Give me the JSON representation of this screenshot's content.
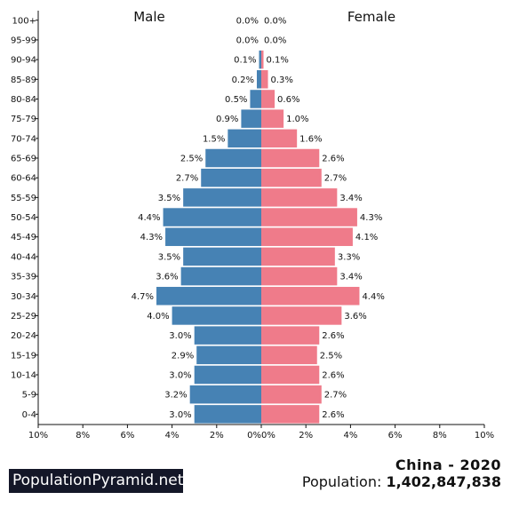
{
  "chart_data": {
    "type": "bar",
    "orientation": "horizontal-pyramid",
    "categories": [
      "100+",
      "95-99",
      "90-94",
      "85-89",
      "80-84",
      "75-79",
      "70-74",
      "65-69",
      "60-64",
      "55-59",
      "50-54",
      "45-49",
      "40-44",
      "35-39",
      "30-34",
      "25-29",
      "20-24",
      "15-19",
      "10-14",
      "5-9",
      "0-4"
    ],
    "series": [
      {
        "name": "Male",
        "color": "#4682b4",
        "values": [
          0.0,
          0.0,
          0.1,
          0.2,
          0.5,
          0.9,
          1.5,
          2.5,
          2.7,
          3.5,
          4.4,
          4.3,
          3.5,
          3.6,
          4.7,
          4.0,
          3.0,
          2.9,
          3.0,
          3.2,
          3.0
        ],
        "labels": [
          "0.0%",
          "0.0%",
          "0.1%",
          "0.2%",
          "0.5%",
          "0.9%",
          "1.5%",
          "2.5%",
          "2.7%",
          "3.5%",
          "4.4%",
          "4.3%",
          "3.5%",
          "3.6%",
          "4.7%",
          "4.0%",
          "3.0%",
          "2.9%",
          "3.0%",
          "3.2%",
          "3.0%"
        ]
      },
      {
        "name": "Female",
        "color": "#ef7b8a",
        "values": [
          0.0,
          0.0,
          0.1,
          0.3,
          0.6,
          1.0,
          1.6,
          2.6,
          2.7,
          3.4,
          4.3,
          4.1,
          3.3,
          3.4,
          4.4,
          3.6,
          2.6,
          2.5,
          2.6,
          2.7,
          2.6
        ],
        "labels": [
          "0.0%",
          "0.0%",
          "0.1%",
          "0.3%",
          "0.6%",
          "1.0%",
          "1.6%",
          "2.6%",
          "2.7%",
          "3.4%",
          "4.3%",
          "4.1%",
          "3.3%",
          "3.4%",
          "4.4%",
          "3.6%",
          "2.6%",
          "2.5%",
          "2.6%",
          "2.7%",
          "2.6%"
        ]
      }
    ],
    "xlim": [
      -10,
      10
    ],
    "xticks_left": [
      "10%",
      "8%",
      "6%",
      "4%",
      "2%",
      "0%"
    ],
    "xticks_right": [
      "0%",
      "2%",
      "4%",
      "6%",
      "8%",
      "10%"
    ],
    "grid": false
  },
  "brand_label": "PopulationPyramid.net",
  "country_year": "China - 2020",
  "population_label": "Population:",
  "population_value": "1,402,847,838"
}
